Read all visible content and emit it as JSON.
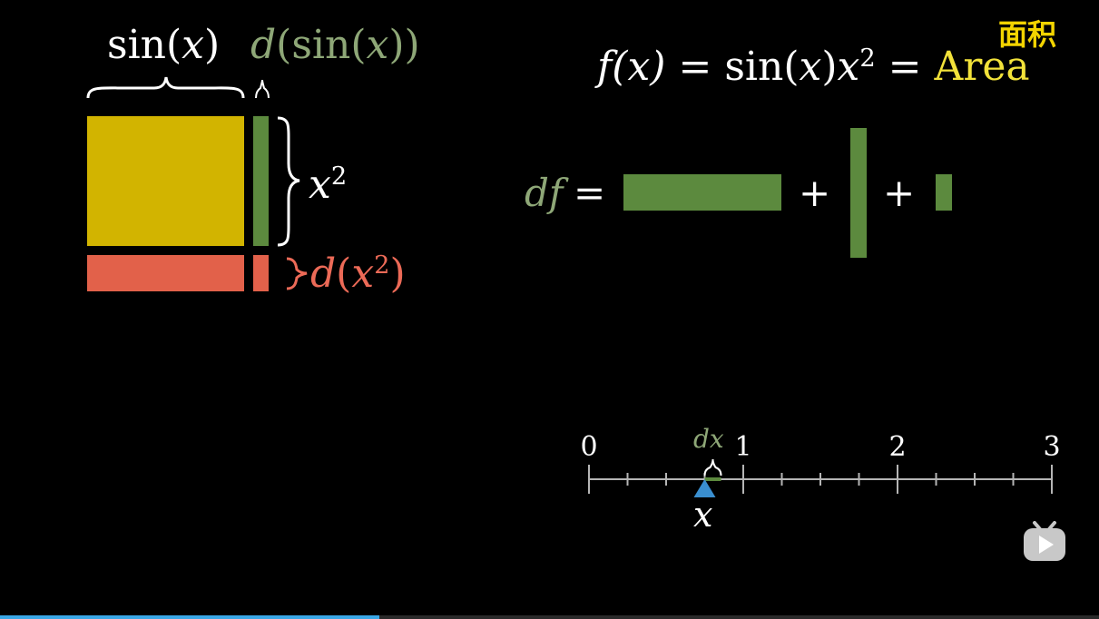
{
  "colors": {
    "background": "#000000",
    "yellow": "#d2b400",
    "green": "#5c8a3e",
    "red": "#e2614a",
    "white": "#ffffff",
    "green_text": "#8ea777",
    "red_text": "#ec6a57",
    "area_text": "#f2e23a",
    "subtitle": "#f3d400",
    "tick_blue": "#3a8fd0",
    "progress": "#3aa7e6"
  },
  "labels": {
    "sin_fn": "sin",
    "x": "x",
    "paren_open": "(",
    "paren_close": ")",
    "d": "d",
    "x_sq_base": "x",
    "x_sq_exp": "2",
    "equals": "=",
    "plus": "+",
    "df": "df",
    "dx": "dx",
    "f_of_x": "f(x)",
    "area_word": "Area",
    "subtitle_cn": "面积"
  },
  "number_line": {
    "ticks": [
      "0",
      "1",
      "2",
      "3"
    ],
    "minor_per_unit": 4,
    "x_value": 0.75
  },
  "icons": {
    "play": "bilibili-play-logo"
  },
  "video": {
    "progress": 0.345
  }
}
